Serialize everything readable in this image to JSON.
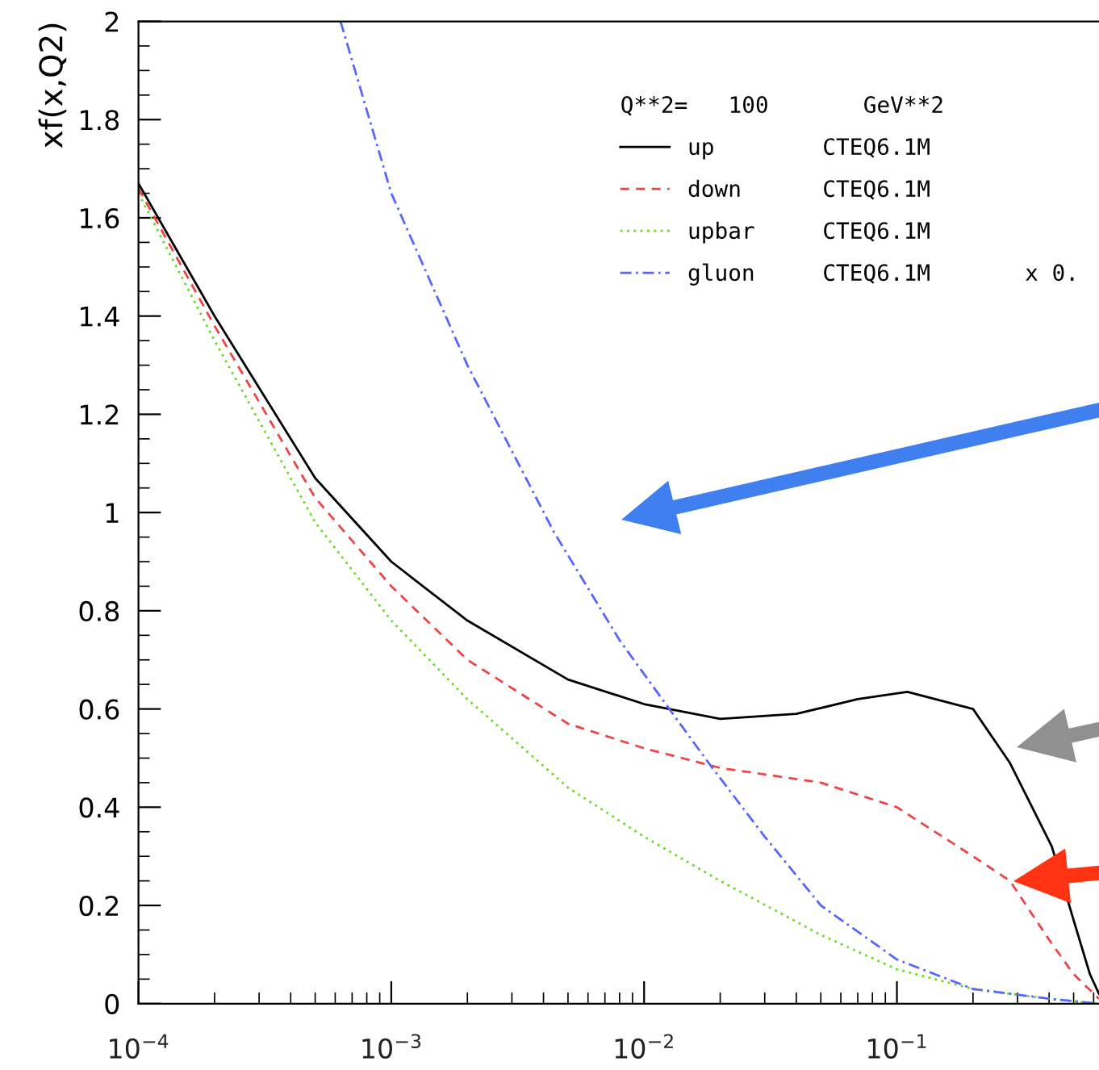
{
  "chart_data": {
    "type": "line",
    "ylabel": "xf(x,Q2)",
    "legend_title": "Q**2=   100       GeV**2",
    "log": "x",
    "grid": false,
    "legend": "top right",
    "xlim": [
      0.0001,
      0.63
    ],
    "xticks": [
      {
        "value": 0.0001,
        "label": "10$^{−4}$"
      },
      {
        "value": 0.001,
        "label": "10$^{−3}$"
      },
      {
        "value": 0.01,
        "label": "10$^{−2}$"
      },
      {
        "value": 0.1,
        "label": "10$^{−1}$"
      }
    ],
    "ylim": [
      0,
      2
    ],
    "yticks": [
      0,
      0.2,
      0.4,
      0.6,
      0.8,
      1,
      1.2,
      1.4,
      1.6,
      1.8,
      2
    ],
    "series": [
      {
        "name": "up        CTEQ6.1M",
        "color": "#000000",
        "line_style": "solid",
        "x": [
          0.0001,
          0.0002,
          0.0005,
          0.001,
          0.002,
          0.005,
          0.01,
          0.02,
          0.04,
          0.07,
          0.11,
          0.2,
          0.28,
          0.41,
          0.5,
          0.58,
          0.63
        ],
        "values": [
          1.67,
          1.4,
          1.07,
          0.9,
          0.78,
          0.66,
          0.61,
          0.58,
          0.59,
          0.62,
          0.635,
          0.6,
          0.49,
          0.32,
          0.17,
          0.06,
          0.02
        ]
      },
      {
        "name": "down      CTEQ6.1M",
        "color": "#ee4444",
        "line_style": "dashed",
        "x": [
          0.0001,
          0.0002,
          0.0005,
          0.001,
          0.002,
          0.005,
          0.01,
          0.02,
          0.05,
          0.1,
          0.2,
          0.28,
          0.4,
          0.5,
          0.63
        ],
        "values": [
          1.66,
          1.38,
          1.03,
          0.85,
          0.7,
          0.57,
          0.52,
          0.48,
          0.45,
          0.4,
          0.3,
          0.25,
          0.13,
          0.06,
          0.01
        ]
      },
      {
        "name": "upbar     CTEQ6.1M",
        "color": "#66dd22",
        "line_style": "dotted",
        "x": [
          0.0001,
          0.0002,
          0.0005,
          0.001,
          0.002,
          0.005,
          0.01,
          0.02,
          0.05,
          0.1,
          0.2,
          0.4,
          0.63
        ],
        "values": [
          1.65,
          1.35,
          0.98,
          0.78,
          0.62,
          0.44,
          0.34,
          0.25,
          0.14,
          0.07,
          0.03,
          0.01,
          0.0
        ]
      },
      {
        "name": "gluon     CTEQ6.1M       x 0.",
        "color": "#5566ff",
        "line_style": "dashdot",
        "x": [
          0.00063,
          0.001,
          0.002,
          0.0044,
          0.008,
          0.013,
          0.018,
          0.03,
          0.05,
          0.1,
          0.2,
          0.4,
          0.63
        ],
        "values": [
          2.0,
          1.65,
          1.3,
          0.96,
          0.74,
          0.59,
          0.49,
          0.34,
          0.2,
          0.09,
          0.03,
          0.01,
          0.0
        ]
      }
    ]
  }
}
